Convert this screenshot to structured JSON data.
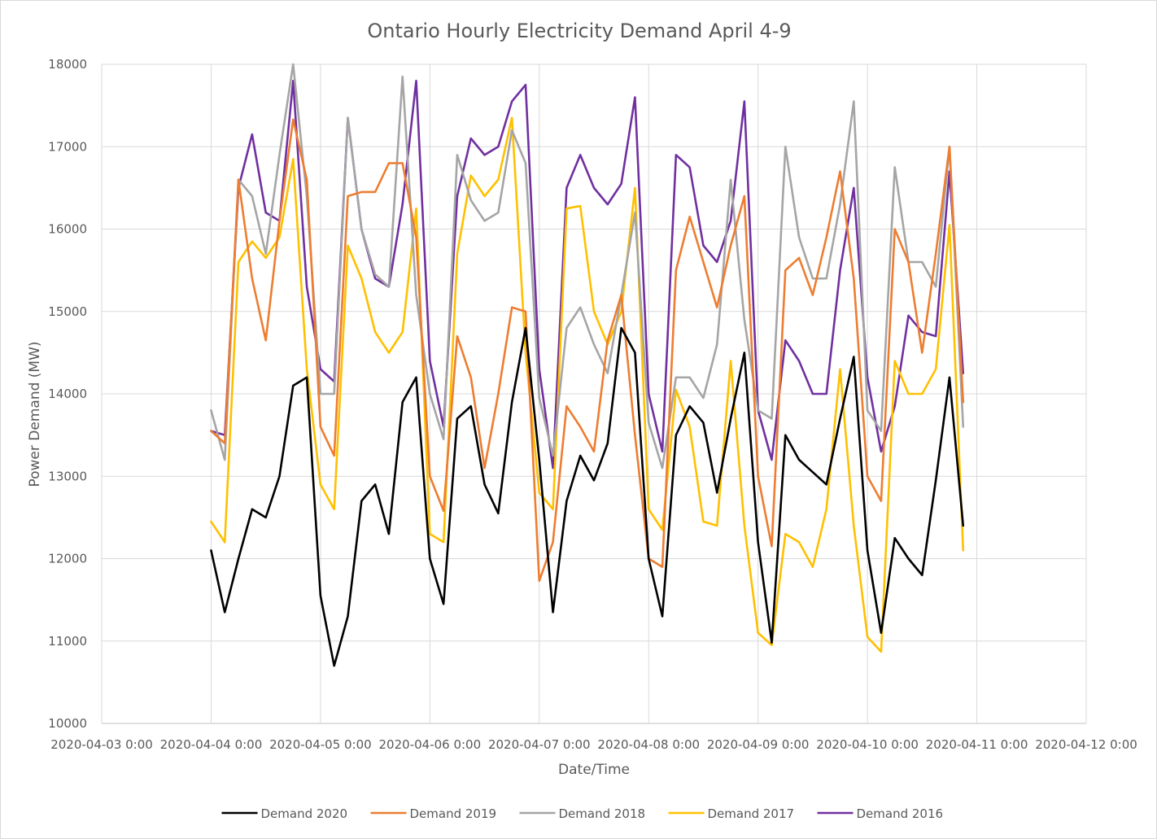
{
  "chart_data": {
    "type": "line",
    "title": "Ontario Hourly Electricity Demand April 4-9",
    "xlabel": "Date/Time",
    "ylabel": "Power Demand (MW)",
    "ylim": [
      10000,
      18000
    ],
    "yticks": [
      10000,
      11000,
      12000,
      13000,
      14000,
      15000,
      16000,
      17000,
      18000
    ],
    "xlim": [
      "2020-04-03 0:00",
      "2020-04-12 0:00"
    ],
    "xticks": [
      "2020-04-03 0:00",
      "2020-04-04 0:00",
      "2020-04-05 0:00",
      "2020-04-06 0:00",
      "2020-04-07 0:00",
      "2020-04-08 0:00",
      "2020-04-09 0:00",
      "2020-04-10 0:00",
      "2020-04-11 0:00",
      "2020-04-12 0:00"
    ],
    "grid": true,
    "legend_position": "bottom",
    "sample_interval": "3h",
    "series": [
      {
        "name": "Demand 2020",
        "color": "#000000",
        "values": [
          12100,
          11350,
          12000,
          12600,
          12500,
          13000,
          14100,
          14200,
          11550,
          10700,
          11300,
          12700,
          12900,
          12300,
          13900,
          14200,
          12000,
          11450,
          13700,
          13850,
          12900,
          12550,
          13900,
          14800,
          13200,
          11350,
          12700,
          13250,
          12950,
          13400,
          14800,
          14500,
          12000,
          11300,
          13500,
          13850,
          13650,
          12800,
          13700,
          14500,
          12200,
          10980,
          13500,
          13200,
          13050,
          12900,
          13700,
          14450,
          12100,
          11100,
          12250,
          12000,
          11800,
          12950,
          14200,
          12400
        ]
      },
      {
        "name": "Demand 2019",
        "color": "#ed7d31",
        "values": [
          13550,
          13400,
          16600,
          15400,
          14650,
          16100,
          17330,
          16600,
          13600,
          13250,
          16400,
          16450,
          16450,
          16800,
          16800,
          15900,
          13000,
          12580,
          14700,
          14200,
          13100,
          14000,
          15050,
          15000,
          11730,
          12200,
          13850,
          13600,
          13300,
          14650,
          15200,
          13500,
          12000,
          11900,
          15500,
          16150,
          15600,
          15050,
          15800,
          16400,
          13000,
          12150,
          15500,
          15650,
          15200,
          15900,
          16700,
          15400,
          13000,
          12700,
          16000,
          15600,
          14500,
          15700,
          17000,
          13900
        ]
      },
      {
        "name": "Demand 2018",
        "color": "#a5a5a5",
        "values": [
          13800,
          13200,
          16600,
          16400,
          15700,
          16900,
          18000,
          16400,
          14000,
          14000,
          17350,
          16000,
          15450,
          15300,
          17850,
          15200,
          14000,
          13450,
          16900,
          16350,
          16100,
          16200,
          17200,
          16800,
          13950,
          13250,
          14800,
          15050,
          14600,
          14250,
          15200,
          16200,
          13650,
          13100,
          14200,
          14200,
          13950,
          14600,
          16600,
          14900,
          13800,
          13700,
          17000,
          15900,
          15400,
          15400,
          16300,
          17550,
          13800,
          13550,
          16750,
          15600,
          15600,
          15300,
          17000,
          13600
        ]
      },
      {
        "name": "Demand 2017",
        "color": "#ffc000",
        "values": [
          12450,
          12200,
          15600,
          15850,
          15650,
          15900,
          16850,
          14300,
          12900,
          12600,
          15800,
          15400,
          14750,
          14500,
          14750,
          16250,
          12300,
          12200,
          15700,
          16650,
          16400,
          16600,
          17350,
          14500,
          12800,
          12600,
          16250,
          16280,
          15000,
          14600,
          15000,
          16500,
          12600,
          12350,
          14050,
          13600,
          12450,
          12400,
          14400,
          12400,
          11100,
          10950,
          12300,
          12200,
          11900,
          12600,
          14300,
          12400,
          11050,
          10870,
          14400,
          14000,
          14000,
          14300,
          16050,
          12100
        ]
      },
      {
        "name": "Demand 2016",
        "color": "#7030a0",
        "values": [
          13550,
          13500,
          16500,
          17150,
          16200,
          16100,
          17800,
          15300,
          14300,
          14150,
          17350,
          16000,
          15400,
          15300,
          16300,
          17800,
          14400,
          13600,
          16400,
          17100,
          16900,
          17000,
          17550,
          17750,
          14300,
          13100,
          16500,
          16900,
          16500,
          16300,
          16550,
          17600,
          14000,
          13300,
          16900,
          16750,
          15800,
          15600,
          16100,
          17550,
          13800,
          13200,
          14650,
          14400,
          14000,
          14000,
          15500,
          16500,
          14200,
          13300,
          13850,
          14950,
          14750,
          14700,
          16700,
          14250
        ]
      }
    ]
  }
}
